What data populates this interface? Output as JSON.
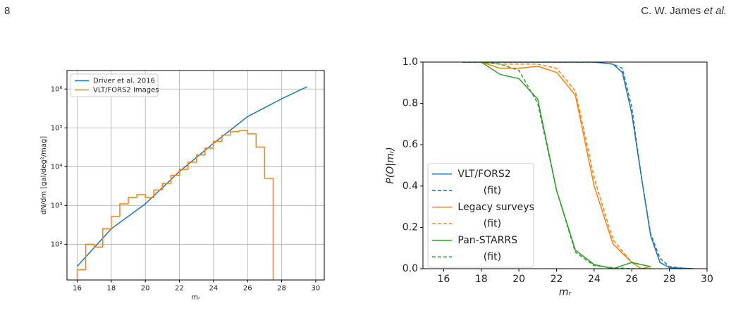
{
  "header": {
    "page": "8",
    "author": "C. W. James",
    "author_suffix": "et al."
  },
  "chart_data": [
    {
      "type": "line",
      "xlabel": "mᵣ",
      "ylabel": "dN/dm [gal/deg²/mag]",
      "xlim": [
        15.4,
        30.5
      ],
      "ylim": [
        12,
        3000000
      ],
      "yscale": "log",
      "grid": true,
      "legend": "upper left",
      "xticks": [
        16,
        18,
        20,
        22,
        24,
        26,
        28,
        30
      ],
      "yticks": [
        {
          "value": 100,
          "label": "10²"
        },
        {
          "value": 1000,
          "label": "10³"
        },
        {
          "value": 10000,
          "label": "10⁴"
        },
        {
          "value": 100000,
          "label": "10⁵"
        },
        {
          "value": 1000000,
          "label": "10⁶"
        }
      ],
      "series": [
        {
          "name": "Driver et al. 2016",
          "type": "line",
          "color": "#1f77b4",
          "x": [
            16,
            18,
            20,
            22,
            24,
            26,
            28,
            29.5
          ],
          "values": [
            27,
            250,
            1100,
            7500,
            40000,
            195000,
            560000,
            1150000
          ]
        },
        {
          "name": "VLT/FORS2 Images",
          "type": "histogram",
          "color": "#ff7f0e",
          "bins": [
            16,
            16.5,
            17,
            17.5,
            18,
            18.5,
            19,
            19.5,
            20,
            20.5,
            21,
            21.5,
            22,
            22.5,
            23,
            23.5,
            24,
            24.5,
            25,
            25.5,
            26,
            26.5,
            27,
            27.5
          ],
          "values": [
            22,
            100,
            85,
            250,
            520,
            1100,
            1600,
            1900,
            1600,
            2500,
            3700,
            6000,
            8500,
            13000,
            20000,
            30000,
            45000,
            65000,
            80000,
            85000,
            70000,
            32000,
            5000
          ]
        }
      ]
    },
    {
      "type": "line",
      "xlabel": "mᵣ",
      "ylabel": "P(O|mᵣ)",
      "xlim": [
        14.9,
        30
      ],
      "ylim": [
        0,
        1
      ],
      "grid": false,
      "legend": "lower left",
      "xticks": [
        16,
        18,
        20,
        22,
        24,
        26,
        28,
        30
      ],
      "yticks": [
        {
          "value": 0,
          "label": "0.0"
        },
        0.2,
        0.4,
        0.6,
        0.8,
        {
          "value": 1,
          "label": "1.0"
        }
      ],
      "series": [
        {
          "name": "VLT/FORS2",
          "type": "line",
          "color": "#1f77b4",
          "linestyle": "solid",
          "x": [
            17,
            24,
            25,
            25.5,
            26,
            26.5,
            27,
            27.5,
            28,
            29.3
          ],
          "values": [
            1,
            1,
            0.99,
            0.95,
            0.75,
            0.45,
            0.16,
            0.03,
            0.005,
            0
          ]
        },
        {
          "name": "(fit)",
          "type": "line",
          "color": "#1f77b4",
          "linestyle": "dashed",
          "x": [
            17,
            24,
            25,
            25.5,
            26,
            26.5,
            27,
            27.5,
            28,
            29
          ],
          "values": [
            1,
            1,
            0.99,
            0.97,
            0.78,
            0.45,
            0.17,
            0.05,
            0.01,
            0
          ]
        },
        {
          "name": "Legacy surveys",
          "type": "line",
          "color": "#ff7f0e",
          "linestyle": "solid",
          "x": [
            18,
            19,
            20,
            21,
            22,
            23,
            24,
            25,
            26,
            26.5,
            27
          ],
          "values": [
            1,
            0.97,
            0.97,
            0.98,
            0.95,
            0.84,
            0.4,
            0.12,
            0.03,
            0,
            0.01
          ]
        },
        {
          "name": "(fit)",
          "type": "line",
          "color": "#ff7f0e",
          "linestyle": "dashed",
          "x": [
            18,
            19,
            20,
            21,
            22,
            23,
            24,
            25,
            26,
            27
          ],
          "values": [
            1,
            0.99,
            0.99,
            0.99,
            0.97,
            0.86,
            0.44,
            0.14,
            0.03,
            0.01
          ]
        },
        {
          "name": "Pan-STARRS",
          "type": "line",
          "color": "#2ca02c",
          "linestyle": "solid",
          "x": [
            18,
            19,
            20,
            21,
            22,
            23,
            24,
            25,
            26,
            27
          ],
          "values": [
            1,
            0.94,
            0.92,
            0.82,
            0.38,
            0.09,
            0.02,
            0,
            0.03,
            0.01
          ]
        },
        {
          "name": "(fit)",
          "type": "line",
          "color": "#2ca02c",
          "linestyle": "dashed",
          "x": [
            17,
            18,
            19,
            20,
            21,
            22,
            23,
            24,
            25,
            26,
            27
          ],
          "values": [
            1,
            1,
            0.99,
            0.96,
            0.8,
            0.38,
            0.08,
            0.015,
            0.005,
            0,
            0
          ]
        }
      ]
    }
  ]
}
